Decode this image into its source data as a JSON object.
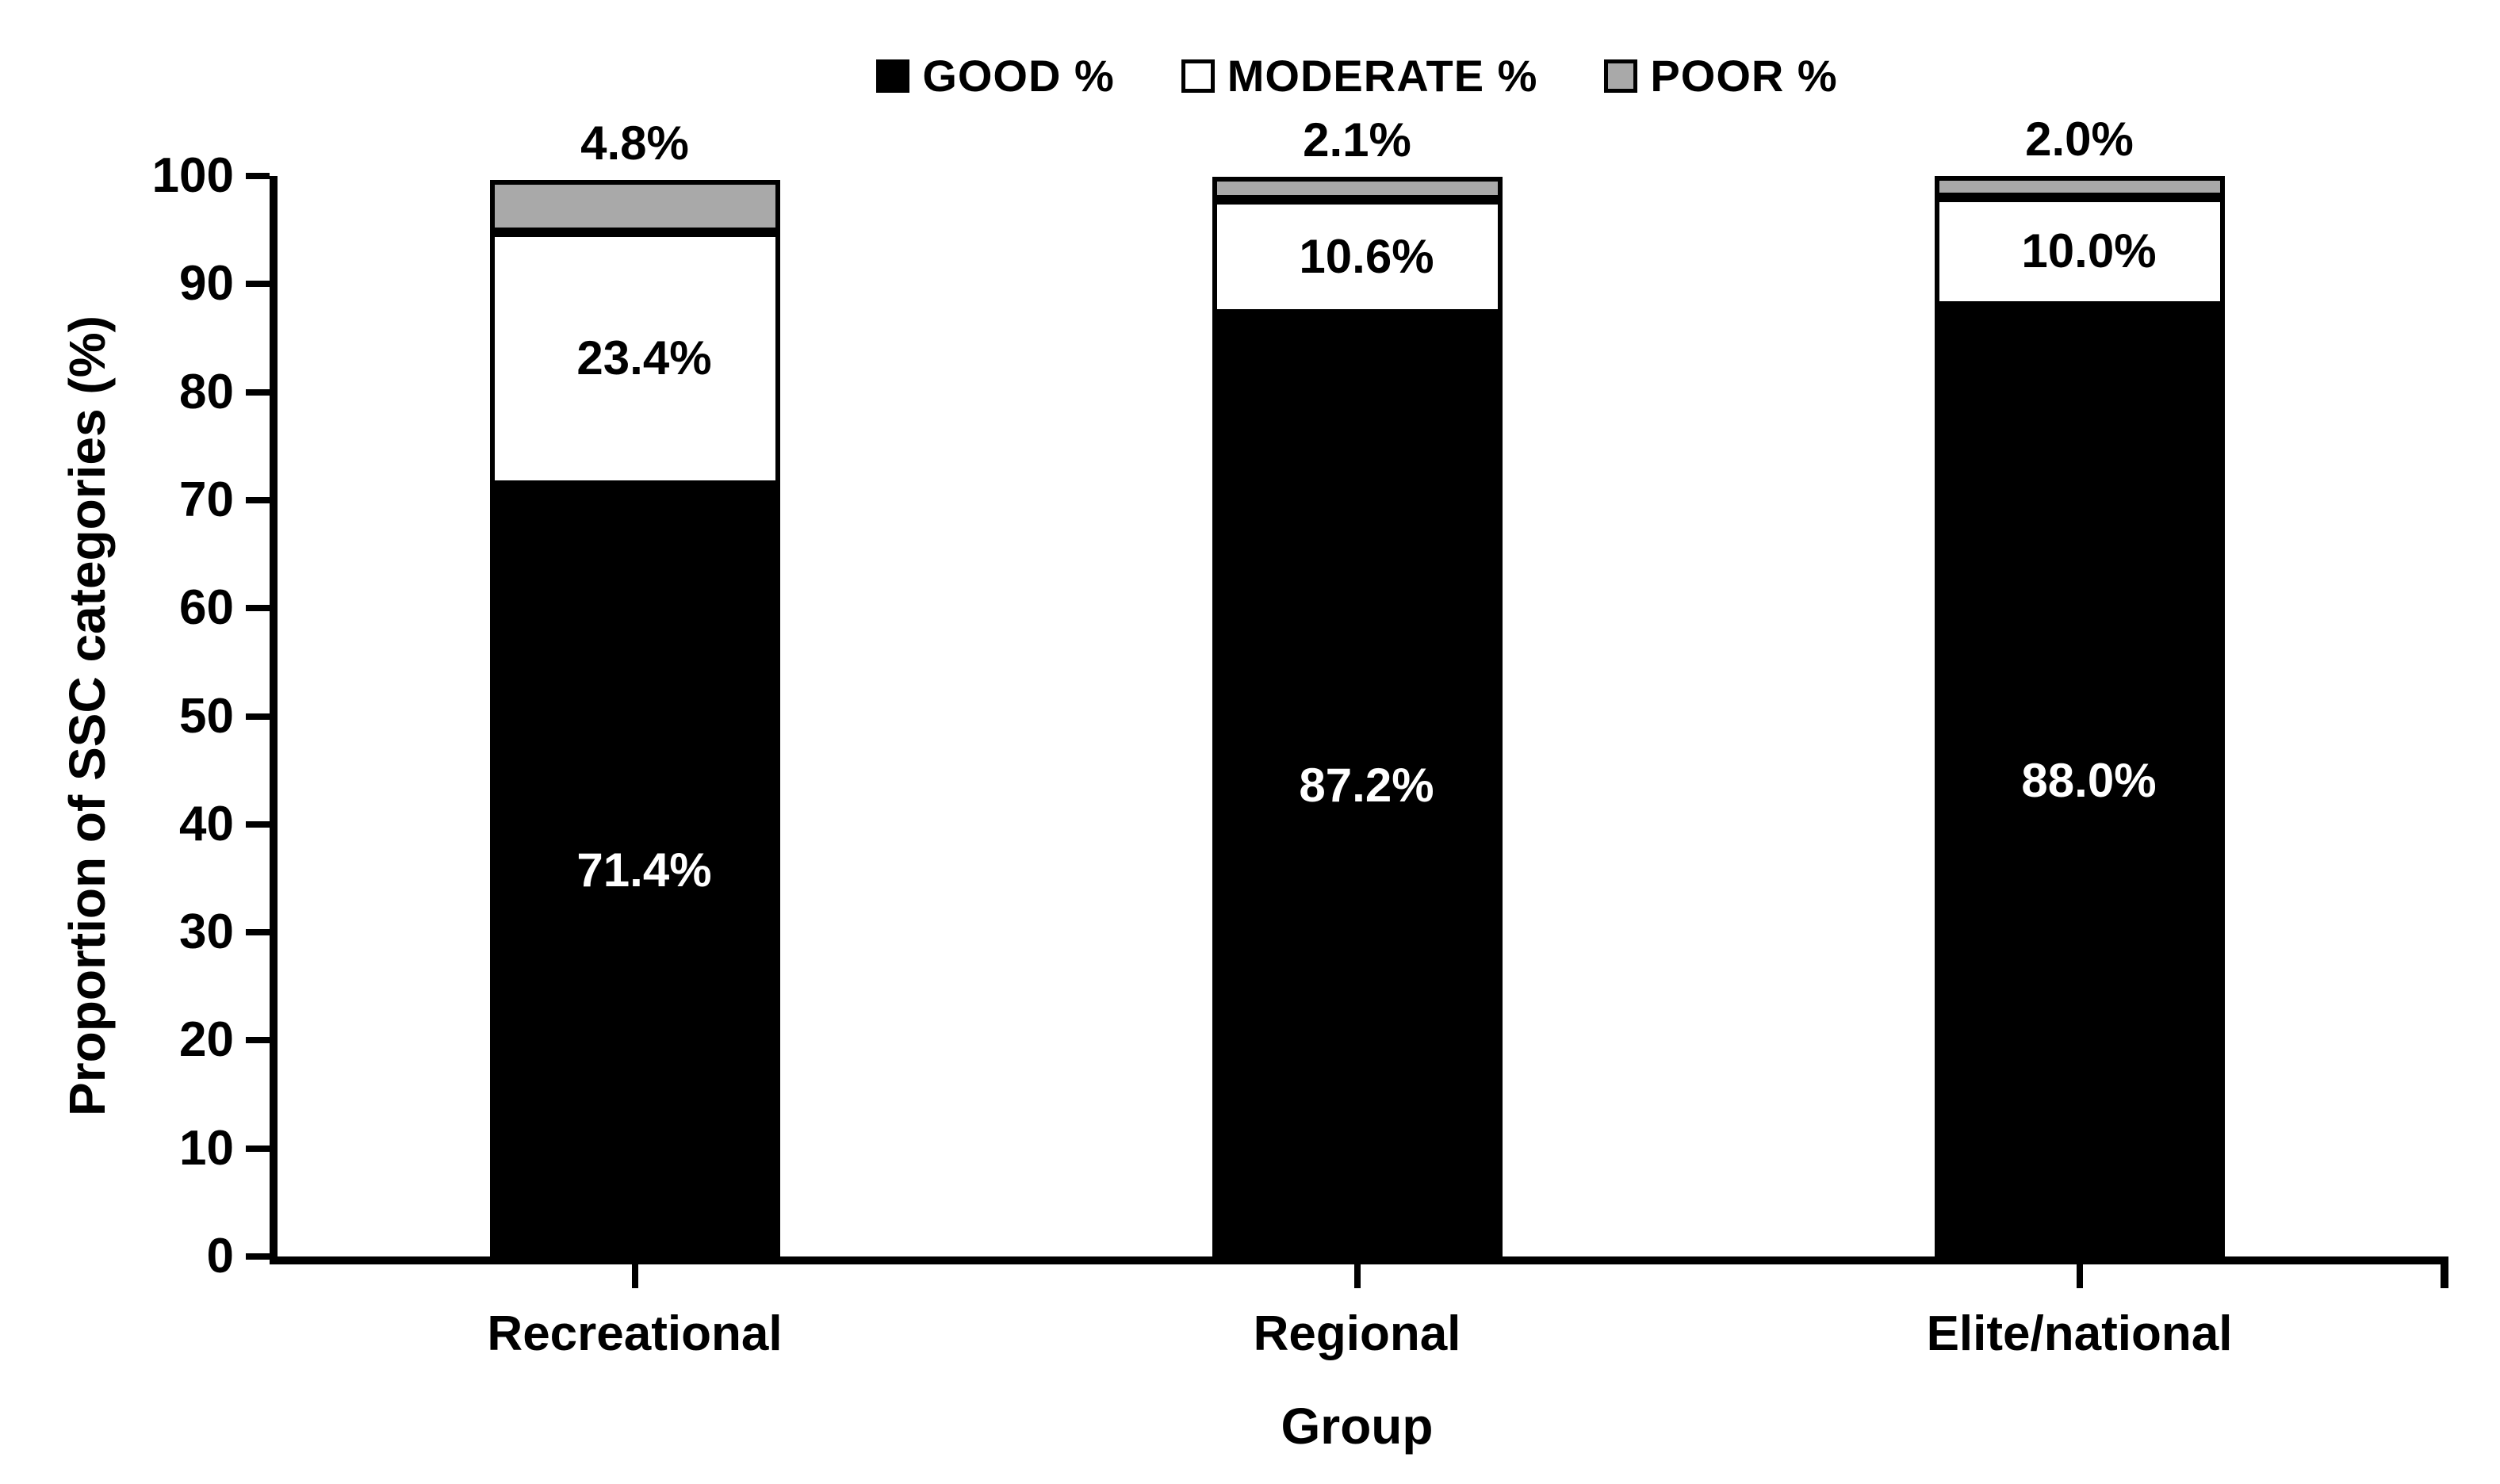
{
  "chart_data": {
    "type": "bar",
    "stacked": true,
    "title": "",
    "categories": [
      "Recreational",
      "Regional",
      "Elite/national"
    ],
    "series": [
      {
        "name": "GOOD %",
        "values": [
          71.4,
          87.2,
          88.0
        ],
        "labels": [
          "71.4%",
          "87.2%",
          "88.0%"
        ],
        "color": "#000000",
        "label_color": "#ffffff",
        "label_placement": "inside"
      },
      {
        "name": "MODERATE %",
        "values": [
          23.4,
          10.6,
          10.0
        ],
        "labels": [
          "23.4%",
          "10.6%",
          "10.0%"
        ],
        "color": "#ffffff",
        "label_color": "#000000",
        "label_placement": "inside"
      },
      {
        "name": "POOR %",
        "values": [
          4.8,
          2.1,
          2.0
        ],
        "labels": [
          "4.8%",
          "2.1%",
          "2.0%"
        ],
        "color": "#a9a9a9",
        "label_color": "#000000",
        "label_placement": "above"
      }
    ],
    "xlabel": "Group",
    "ylabel": "Proportion of SSC categories (%)",
    "ylim": [
      0,
      100
    ],
    "yticks": [
      0,
      10,
      20,
      30,
      40,
      50,
      60,
      70,
      80,
      90,
      100
    ],
    "grid": false,
    "legend_position": "top-center",
    "axis_color": "#000000",
    "segment_border_color": "#000000",
    "bar_colors": {
      "good": "#000000",
      "moderate": "#ffffff",
      "poor": "#a9a9a9"
    }
  }
}
